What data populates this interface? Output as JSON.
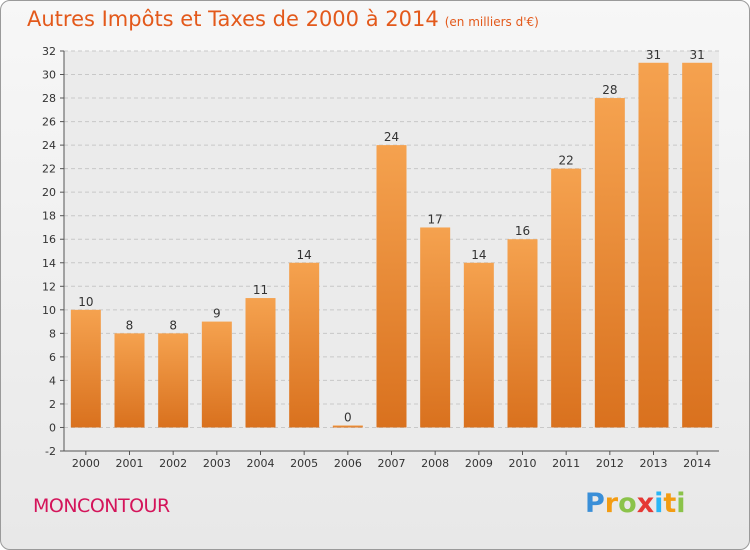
{
  "title": "Autres Impôts et Taxes de 2000 à 2014",
  "unit_note": "(en milliers d'€)",
  "place": "MONCONTOUR",
  "logo": {
    "letters": [
      "P",
      "r",
      "o",
      "x",
      "i",
      "t",
      "i"
    ],
    "colors": [
      "#3a8fd8",
      "#f39c12",
      "#8bc34a",
      "#e53935",
      "#29b6f6",
      "#f39c12",
      "#8bc34a"
    ]
  },
  "colors": {
    "bar_light": "#f5a24f",
    "bar_dark": "#d9711e",
    "title": "#e3591b",
    "place": "#d4145a"
  },
  "chart_data": {
    "type": "bar",
    "categories": [
      "2000",
      "2001",
      "2002",
      "2003",
      "2004",
      "2005",
      "2006",
      "2007",
      "2008",
      "2009",
      "2010",
      "2011",
      "2012",
      "2013",
      "2014"
    ],
    "values": [
      10,
      8,
      8,
      9,
      11,
      14,
      0,
      24,
      17,
      14,
      16,
      22,
      28,
      31,
      31
    ],
    "ylim": [
      -2,
      32
    ],
    "yticks": [
      -2,
      0,
      2,
      4,
      6,
      8,
      10,
      12,
      14,
      16,
      18,
      20,
      22,
      24,
      26,
      28,
      30,
      32
    ],
    "grid": "horizontal-dashed"
  }
}
